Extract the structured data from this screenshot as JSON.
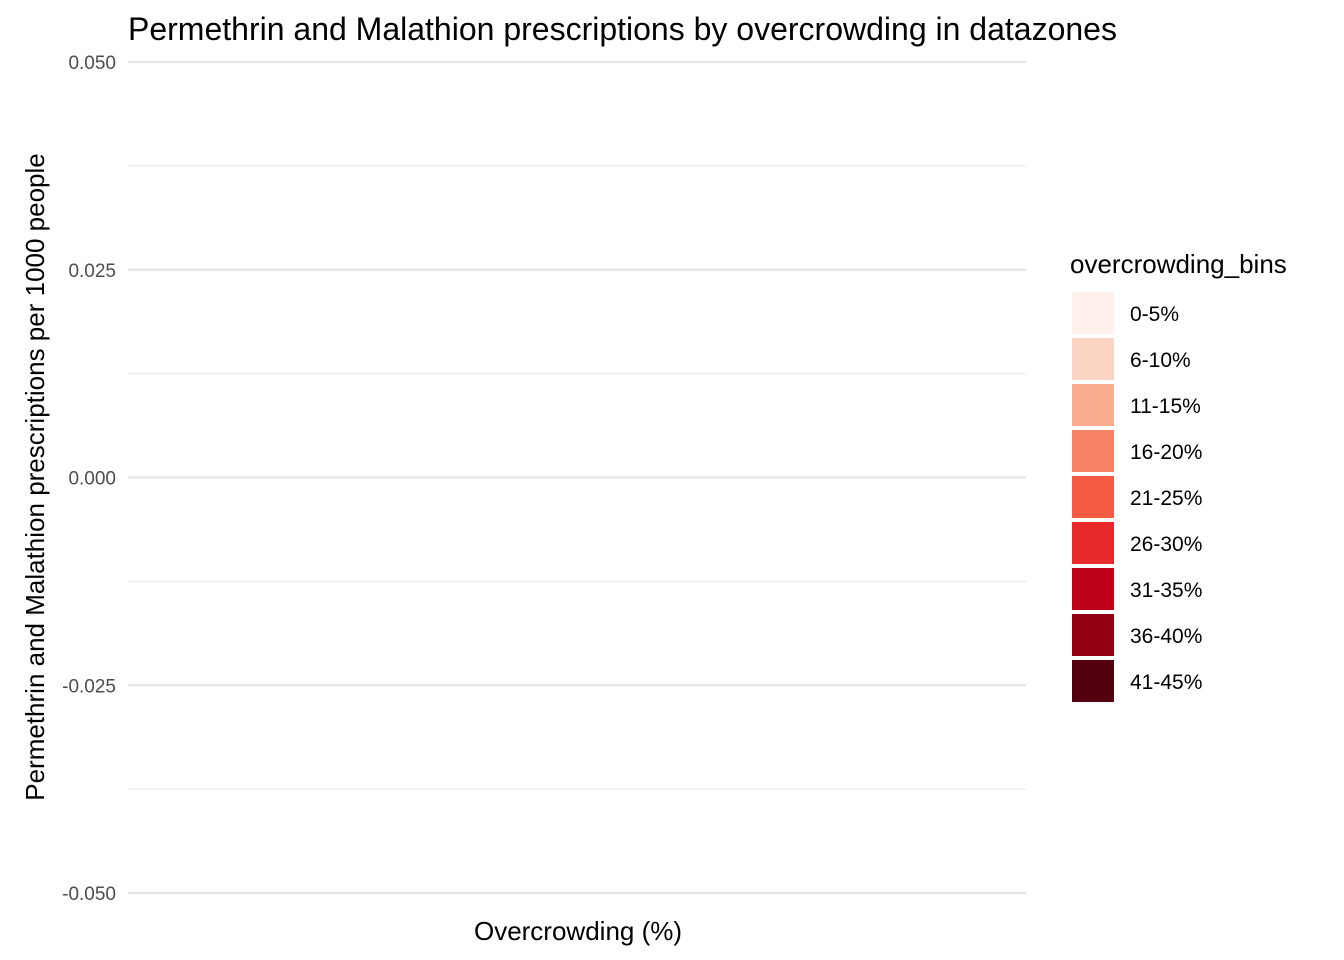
{
  "chart_data": {
    "type": "bar",
    "title": "Permethrin and Malathion prescriptions by overcrowding in datazones",
    "xlabel": "Overcrowding (%)",
    "ylabel": "Permethrin and Malathion prescriptions per 1000 people",
    "ylim": [
      -0.05,
      0.05
    ],
    "y_ticks": [
      "0.050",
      "0.025",
      "0.000",
      "-0.025",
      "-0.050"
    ],
    "y_tick_values": [
      0.05,
      0.025,
      0.0,
      -0.025,
      -0.05
    ],
    "grid": true,
    "categories": [],
    "values": [],
    "legend": {
      "title": "overcrowding_bins",
      "placement": "right",
      "items": [
        {
          "label": "0-5%",
          "color": "#fff0eb"
        },
        {
          "label": "6-10%",
          "color": "#fcd4c3"
        },
        {
          "label": "11-15%",
          "color": "#f9ac8e"
        },
        {
          "label": "16-20%",
          "color": "#f78466"
        },
        {
          "label": "21-25%",
          "color": "#f55a43"
        },
        {
          "label": "26-30%",
          "color": "#e8292a"
        },
        {
          "label": "31-35%",
          "color": "#bf0019"
        },
        {
          "label": "36-40%",
          "color": "#920012"
        },
        {
          "label": "41-45%",
          "color": "#55000e"
        }
      ]
    }
  }
}
